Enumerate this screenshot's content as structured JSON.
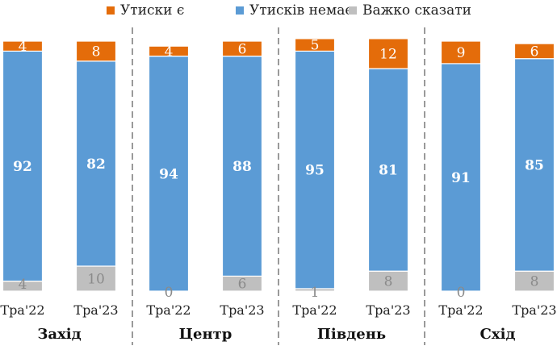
{
  "chart_data": {
    "type": "bar",
    "stacked": true,
    "percent": true,
    "title": "",
    "xlabel": "",
    "ylabel": "",
    "ylim": [
      0,
      100
    ],
    "grid": false,
    "legend_position": "top",
    "colors": {
      "Утиски є": "#E46C0A",
      "Утисків немає": "#5B9BD5",
      "Важко сказати": "#BFBFBF",
      "separator": "#808080"
    },
    "groups": [
      {
        "name": "Захід",
        "categories": [
          "Тра'22",
          "Тра'23"
        ]
      },
      {
        "name": "Центр",
        "categories": [
          "Тра'22",
          "Тра'23"
        ]
      },
      {
        "name": "Південь",
        "categories": [
          "Тра'22",
          "Тра'23"
        ]
      },
      {
        "name": "Схід",
        "categories": [
          "Тра'22",
          "Тра'23"
        ]
      }
    ],
    "categories": [
      "Тра'22",
      "Тра'23",
      "Тра'22",
      "Тра'23",
      "Тра'22",
      "Тра'23",
      "Тра'22",
      "Тра'23"
    ],
    "series": [
      {
        "name": "Утиски є",
        "values": [
          4,
          8,
          4,
          6,
          5,
          12,
          9,
          6
        ]
      },
      {
        "name": "Утисків немає",
        "values": [
          92,
          82,
          94,
          88,
          95,
          81,
          91,
          85
        ]
      },
      {
        "name": "Важко сказати",
        "values": [
          4,
          10,
          0,
          6,
          1,
          8,
          0,
          8
        ]
      }
    ]
  }
}
